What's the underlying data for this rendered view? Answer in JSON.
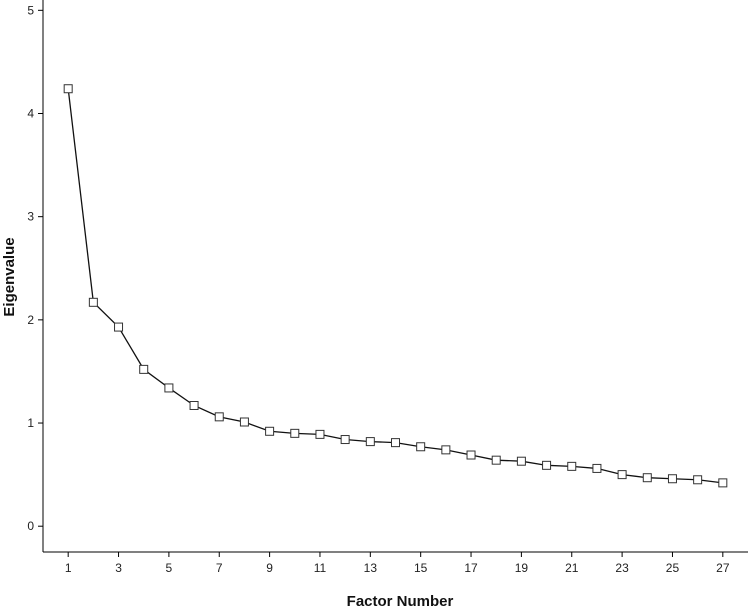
{
  "chart_data": {
    "type": "line",
    "xlabel": "Factor Number",
    "ylabel": "Eigenvalue",
    "xlim": [
      0,
      28
    ],
    "ylim": [
      -0.25,
      5.1
    ],
    "x_ticks": [
      1,
      3,
      5,
      7,
      9,
      11,
      13,
      15,
      17,
      19,
      21,
      23,
      25,
      27
    ],
    "y_ticks": [
      0,
      1,
      2,
      3,
      4,
      5
    ],
    "grid": false,
    "legend": "none",
    "marker": "square",
    "series": [
      {
        "x": [
          1,
          2,
          3,
          4,
          5,
          6,
          7,
          8,
          9,
          10,
          11,
          12,
          13,
          14,
          15,
          16,
          17,
          18,
          19,
          20,
          21,
          22,
          23,
          24,
          25,
          26,
          27
        ],
        "values": [
          4.24,
          2.17,
          1.93,
          1.52,
          1.34,
          1.17,
          1.06,
          1.01,
          0.92,
          0.9,
          0.89,
          0.84,
          0.82,
          0.81,
          0.77,
          0.74,
          0.69,
          0.64,
          0.63,
          0.59,
          0.58,
          0.56,
          0.5,
          0.47,
          0.46,
          0.45,
          0.42
        ]
      }
    ]
  }
}
